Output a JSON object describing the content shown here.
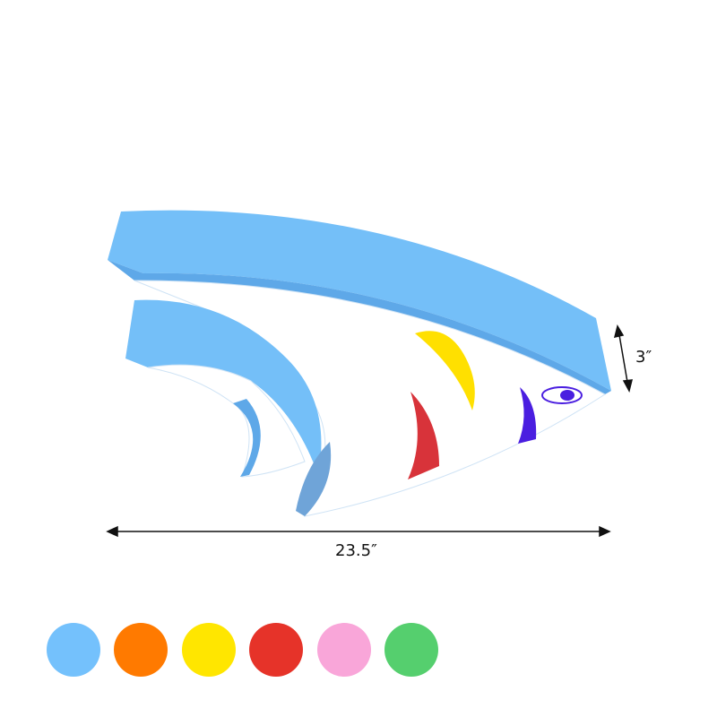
{
  "dimensions": {
    "width": "23.5″",
    "height": "3″"
  },
  "product": {
    "body_color": "#74bff8",
    "stripe_colors": [
      "#ffe000",
      "#d8333a",
      "#4a1ee0"
    ]
  },
  "color_options": [
    {
      "name": "blue",
      "hex": "#74c1fc"
    },
    {
      "name": "orange",
      "hex": "#ff7a00"
    },
    {
      "name": "yellow",
      "hex": "#ffe600"
    },
    {
      "name": "red",
      "hex": "#e63329"
    },
    {
      "name": "pink",
      "hex": "#f9a6d9"
    },
    {
      "name": "green",
      "hex": "#55cf6e"
    }
  ]
}
